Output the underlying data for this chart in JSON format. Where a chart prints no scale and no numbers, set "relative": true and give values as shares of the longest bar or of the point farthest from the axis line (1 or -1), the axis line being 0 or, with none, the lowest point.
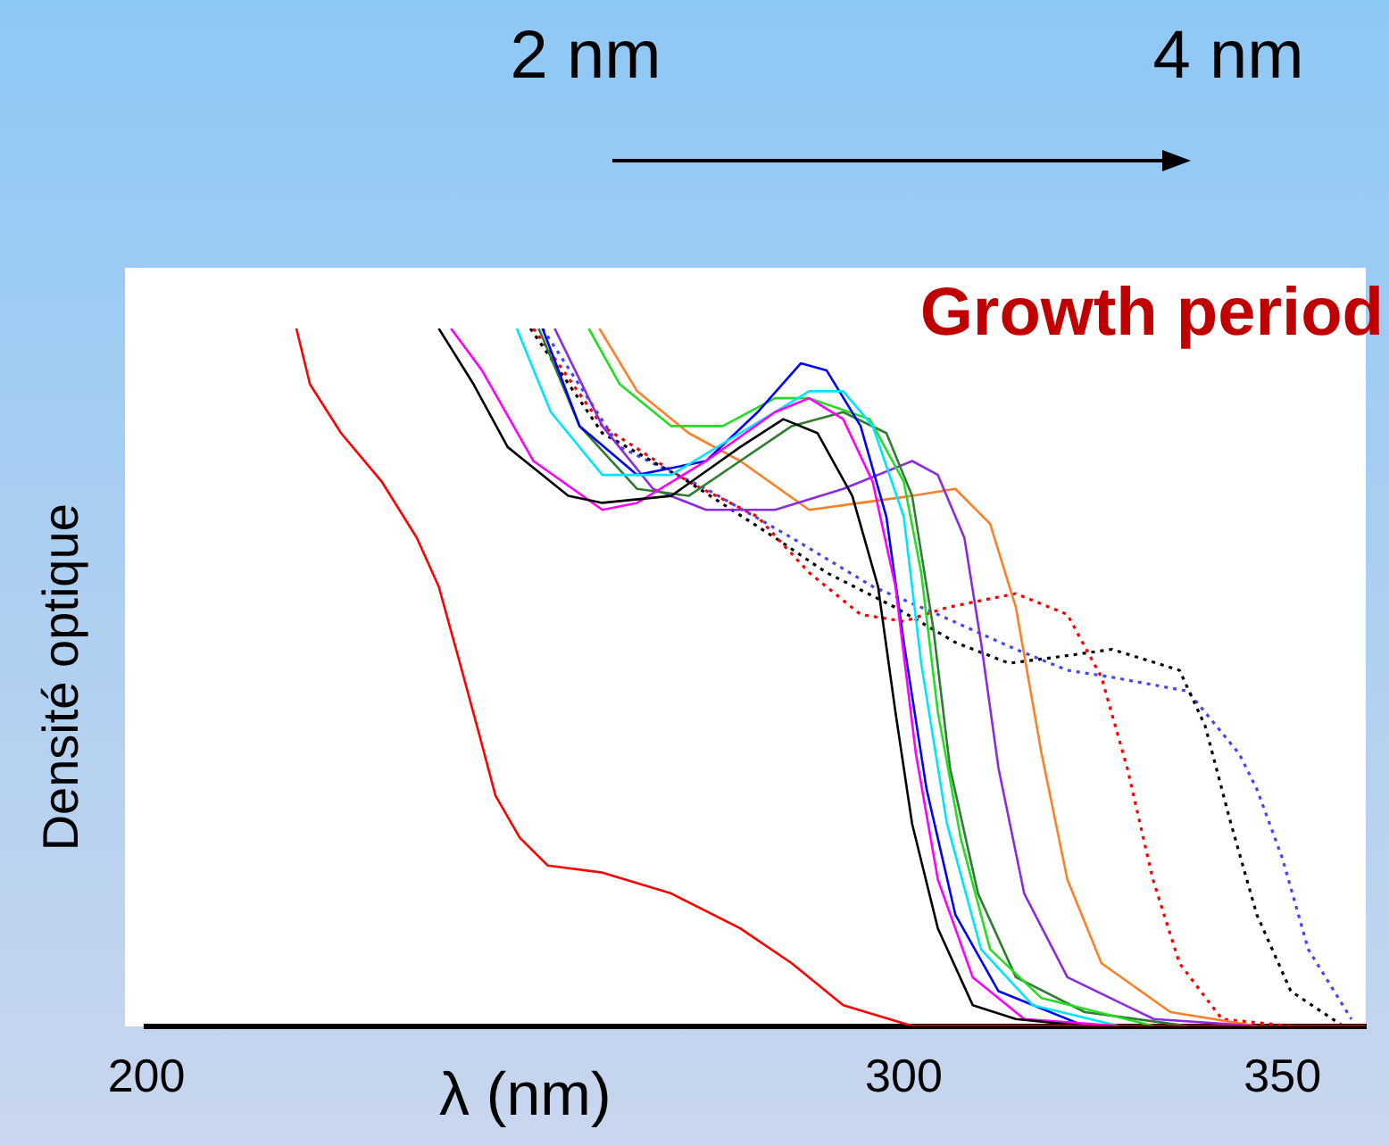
{
  "chart_data": {
    "type": "line",
    "title": "Growth period",
    "xlabel": "λ (nm)",
    "ylabel": "Densité optique",
    "annotations": [
      "2 nm",
      "4 nm"
    ],
    "relative": true,
    "xlim": [
      200,
      361
    ],
    "xticks": [
      200,
      300,
      350
    ],
    "grid": false,
    "legend": false,
    "marker": "none",
    "series": [
      {
        "color": "#ff0000",
        "line_style": "solid",
        "x": [
          219.8,
          221.6,
          225.7,
          231.1,
          235.7,
          238.6,
          241.4,
          243.9,
          246.1,
          249.3,
          253,
          260.2,
          269.3,
          278.4,
          285.2,
          292,
          301.1,
          314.8,
          361
        ],
        "values": [
          1,
          0.92,
          0.85,
          0.78,
          0.7,
          0.63,
          0.52,
          0.42,
          0.33,
          0.27,
          0.23,
          0.22,
          0.19,
          0.14,
          0.09,
          0.03,
          0,
          0,
          0
        ]
      },
      {
        "color": "#000000",
        "line_style": "solid",
        "x": [
          238.6,
          243.2,
          247.7,
          255.7,
          260.2,
          269.3,
          278.4,
          284.1,
          288.6,
          293.2,
          296.6,
          298.9,
          301.1,
          304.5,
          309.1,
          314.8,
          323.9
        ],
        "values": [
          1,
          0.92,
          0.83,
          0.76,
          0.75,
          0.76,
          0.83,
          0.87,
          0.85,
          0.76,
          0.63,
          0.45,
          0.29,
          0.14,
          0.03,
          0.01,
          0
        ]
      },
      {
        "color": "#ff00ff",
        "line_style": "solid",
        "x": [
          240.2,
          244.3,
          251.1,
          260.2,
          264.8,
          273.9,
          283,
          287.5,
          292,
          295.9,
          298.9,
          301.6,
          304.5,
          309.1,
          315.9,
          328.4
        ],
        "values": [
          1,
          0.94,
          0.81,
          0.74,
          0.75,
          0.81,
          0.88,
          0.9,
          0.87,
          0.78,
          0.63,
          0.39,
          0.21,
          0.07,
          0.01,
          0
        ]
      },
      {
        "color": "#00e5ff",
        "line_style": "solid",
        "x": [
          248.9,
          253.4,
          260.2,
          269.3,
          278.4,
          287.5,
          292,
          295.9,
          300,
          302.3,
          305.7,
          310.2,
          317,
          328.4
        ],
        "values": [
          1,
          0.88,
          0.79,
          0.79,
          0.85,
          0.91,
          0.91,
          0.86,
          0.73,
          0.52,
          0.29,
          0.11,
          0.03,
          0
        ]
      },
      {
        "color": "#0000ff",
        "line_style": "solid",
        "x": [
          252.3,
          257.2,
          264.8,
          273.9,
          280.7,
          286.4,
          289.8,
          294.3,
          297.7,
          300,
          303,
          306.8,
          312.5,
          323.9
        ],
        "values": [
          1,
          0.86,
          0.79,
          0.81,
          0.88,
          0.95,
          0.94,
          0.86,
          0.73,
          0.55,
          0.34,
          0.16,
          0.05,
          0
        ]
      },
      {
        "color": "#22dd22",
        "line_style": "solid",
        "x": [
          258.4,
          262.5,
          269.3,
          276.1,
          283,
          287.5,
          295.5,
          300,
          302.3,
          304.5,
          307.5,
          311.4,
          318.2,
          333
        ],
        "values": [
          1,
          0.92,
          0.86,
          0.86,
          0.9,
          0.9,
          0.87,
          0.78,
          0.65,
          0.45,
          0.27,
          0.11,
          0.04,
          0
        ]
      },
      {
        "color": "#2e7d32",
        "line_style": "solid",
        "x": [
          251.8,
          257.2,
          264.8,
          271.6,
          278.4,
          285.2,
          292,
          297.7,
          301.1,
          303.9,
          306.1,
          309.8,
          314.8,
          323.9,
          337.5
        ],
        "values": [
          1,
          0.86,
          0.77,
          0.76,
          0.81,
          0.86,
          0.88,
          0.85,
          0.76,
          0.57,
          0.37,
          0.19,
          0.07,
          0.02,
          0
        ]
      },
      {
        "color": "#8a2be2",
        "line_style": "solid",
        "x": [
          253.9,
          260.2,
          266.9,
          273.9,
          283,
          292,
          301.1,
          304.5,
          308,
          310.2,
          312.5,
          315.9,
          321.6,
          333,
          346.6
        ],
        "values": [
          1,
          0.86,
          0.77,
          0.74,
          0.74,
          0.77,
          0.81,
          0.79,
          0.7,
          0.55,
          0.37,
          0.19,
          0.07,
          0.01,
          0
        ]
      },
      {
        "color": "#ff7f27",
        "line_style": "solid",
        "x": [
          259.8,
          264.8,
          271.6,
          278.4,
          287.5,
          294.3,
          301.1,
          306.8,
          311.4,
          314.8,
          318.2,
          321.6,
          326.1,
          335.2,
          346.6
        ],
        "values": [
          1,
          0.91,
          0.85,
          0.81,
          0.74,
          0.75,
          0.76,
          0.77,
          0.72,
          0.6,
          0.39,
          0.21,
          0.09,
          0.02,
          0
        ]
      },
      {
        "color": "#ff0000",
        "line_style": "dotted",
        "x": [
          251.1,
          260.2,
          271.6,
          280.7,
          287.5,
          294.3,
          300,
          305.7,
          314.8,
          321.6,
          326.1,
          329.5,
          332.9,
          336.4,
          342,
          351.1
        ],
        "values": [
          1,
          0.86,
          0.78,
          0.73,
          0.65,
          0.59,
          0.58,
          0.6,
          0.62,
          0.59,
          0.5,
          0.37,
          0.21,
          0.09,
          0.01,
          0
        ]
      },
      {
        "color": "#000000",
        "line_style": "dotted",
        "x": [
          250.7,
          260.2,
          271.6,
          283,
          289.8,
          298.9,
          306.8,
          313.9,
          320.9,
          327.5,
          336.4,
          339.8,
          343.2,
          346.6,
          351.1,
          358
        ],
        "values": [
          1,
          0.85,
          0.78,
          0.7,
          0.65,
          0.6,
          0.55,
          0.52,
          0.53,
          0.54,
          0.51,
          0.43,
          0.29,
          0.16,
          0.05,
          0
        ]
      },
      {
        "color": "#4444ff",
        "line_style": "dotted",
        "x": [
          252.3,
          262.5,
          273.9,
          285.2,
          295.9,
          304.5,
          314.8,
          321.6,
          327.5,
          337.5,
          344.3,
          346.6,
          350,
          353.4,
          359.1
        ],
        "values": [
          1,
          0.83,
          0.77,
          0.7,
          0.63,
          0.59,
          0.54,
          0.51,
          0.5,
          0.48,
          0.39,
          0.34,
          0.24,
          0.11,
          0.01
        ]
      }
    ]
  }
}
